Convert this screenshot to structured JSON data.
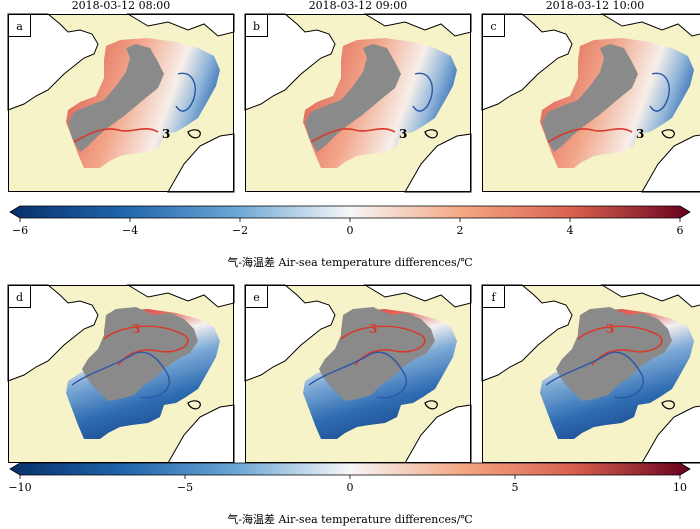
{
  "chart_data": [
    {
      "type": "heatmap",
      "panels": [
        {
          "id": "a",
          "time": "2018-03-12 08:00"
        },
        {
          "id": "b",
          "time": "2018-03-12 09:00"
        },
        {
          "id": "c",
          "time": "2018-03-12 10:00"
        }
      ],
      "contour_label": "3",
      "colorbar": {
        "ticks": [
          "−6",
          "−4",
          "−2",
          "0",
          "2",
          "4",
          "6"
        ],
        "range": [
          -6,
          6
        ],
        "label": "气-海温差 Air-sea temperature differences/℃"
      }
    },
    {
      "type": "heatmap",
      "panels": [
        {
          "id": "d"
        },
        {
          "id": "e"
        },
        {
          "id": "f"
        }
      ],
      "contour_label": "3",
      "colorbar": {
        "ticks": [
          "−10",
          "−5",
          "0",
          "5",
          "10"
        ],
        "range": [
          -10,
          10
        ],
        "label": "气-海温差 Air-sea temperature differences/℃"
      }
    }
  ],
  "colors": {
    "land": "#f7f3c8",
    "grey": "#8a8a8a",
    "red": "#d83a2c",
    "blue": "#2a57a8"
  }
}
